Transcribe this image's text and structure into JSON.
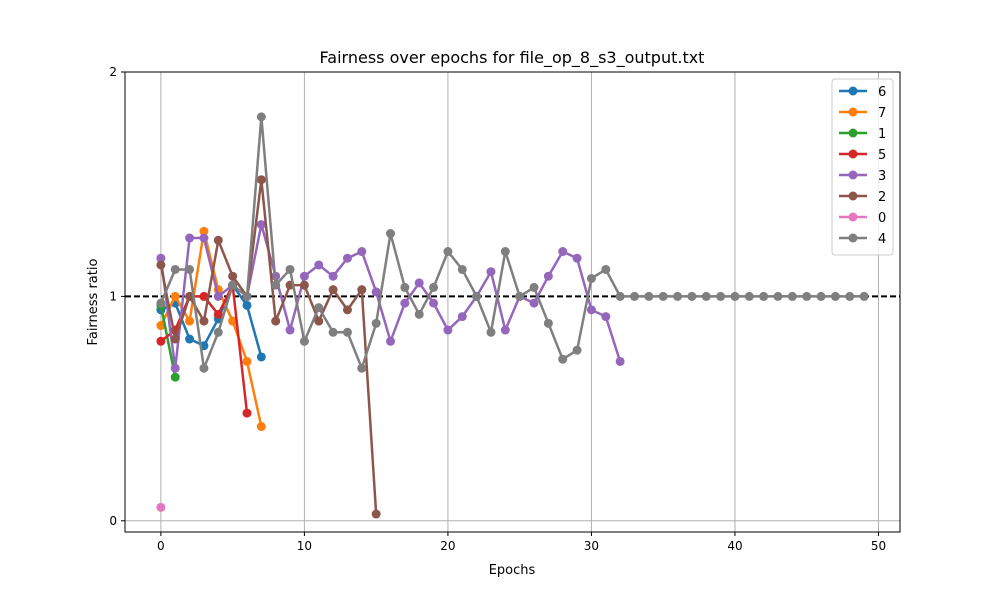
{
  "chart_data": {
    "type": "line",
    "title": "Fairness over epochs for file_op_8_s3_output.txt",
    "xlabel": "Epochs",
    "ylabel": "Fairness ratio",
    "xlim": [
      -2.5,
      51.5
    ],
    "ylim": [
      -0.05,
      2.0
    ],
    "xticks": [
      0,
      10,
      20,
      30,
      40,
      50
    ],
    "yticks": [
      0,
      1,
      2
    ],
    "grid": "vertical",
    "reference_line": {
      "y": 1.0,
      "style": "dashed",
      "color": "#000000"
    },
    "legend_position": "top-right",
    "series": [
      {
        "name": "6",
        "color": "#1f77b4",
        "x": [
          0,
          1,
          2,
          3,
          4,
          5,
          6,
          7
        ],
        "y": [
          0.94,
          0.97,
          0.81,
          0.78,
          0.9,
          1.05,
          0.96,
          0.73
        ]
      },
      {
        "name": "7",
        "color": "#ff7f0e",
        "x": [
          0,
          1,
          2,
          3,
          4,
          5,
          6,
          7
        ],
        "y": [
          0.87,
          1.0,
          0.89,
          1.29,
          1.03,
          0.89,
          0.71,
          0.42
        ]
      },
      {
        "name": "1",
        "color": "#2ca02c",
        "x": [
          0,
          1
        ],
        "y": [
          0.96,
          0.64
        ]
      },
      {
        "name": "5",
        "color": "#d62728",
        "x": [
          0,
          1,
          2,
          3,
          4,
          5,
          6
        ],
        "y": [
          0.8,
          0.85,
          1.0,
          1.0,
          0.92,
          1.05,
          0.48
        ]
      },
      {
        "name": "3",
        "color": "#9467bd",
        "x": [
          0,
          1,
          2,
          3,
          4,
          5,
          6,
          7,
          8,
          9,
          10,
          11,
          12,
          13,
          14,
          15,
          16,
          17,
          18,
          19,
          20,
          21,
          22,
          23,
          24,
          25,
          26,
          27,
          28,
          29,
          30,
          31,
          32
        ],
        "y": [
          1.17,
          0.68,
          1.26,
          1.26,
          1.0,
          1.05,
          1.0,
          1.32,
          1.09,
          0.85,
          1.09,
          1.14,
          1.09,
          1.17,
          1.2,
          1.02,
          0.8,
          0.97,
          1.06,
          0.97,
          0.85,
          0.91,
          1.0,
          1.11,
          0.85,
          1.0,
          0.97,
          1.09,
          1.2,
          1.17,
          0.94,
          0.91,
          0.71
        ]
      },
      {
        "name": "2",
        "color": "#8c564b",
        "x": [
          0,
          1,
          2,
          3,
          4,
          5,
          6,
          7,
          8,
          9,
          10,
          11,
          12,
          13,
          14,
          15
        ],
        "y": [
          1.14,
          0.81,
          1.0,
          0.89,
          1.25,
          1.09,
          1.0,
          1.52,
          0.89,
          1.05,
          1.05,
          0.89,
          1.03,
          0.94,
          1.03,
          0.03
        ]
      },
      {
        "name": "0",
        "color": "#e377c2",
        "x": [
          0
        ],
        "y": [
          0.06
        ]
      },
      {
        "name": "4",
        "color": "#7f7f7f",
        "x": [
          0,
          1,
          2,
          3,
          4,
          5,
          6,
          7,
          8,
          9,
          10,
          11,
          12,
          13,
          14,
          15,
          16,
          17,
          18,
          19,
          20,
          21,
          22,
          23,
          24,
          25,
          26,
          27,
          28,
          29,
          30,
          31,
          32,
          33,
          34,
          35,
          36,
          37,
          38,
          39,
          40,
          41,
          42,
          43,
          44,
          45,
          46,
          47,
          48,
          49
        ],
        "y": [
          0.97,
          1.12,
          1.12,
          0.68,
          0.84,
          1.05,
          1.0,
          1.8,
          1.05,
          1.12,
          0.8,
          0.95,
          0.84,
          0.84,
          0.68,
          0.88,
          1.28,
          1.04,
          0.92,
          1.04,
          1.2,
          1.12,
          1.0,
          0.84,
          1.2,
          1.0,
          1.04,
          0.88,
          0.72,
          0.76,
          1.08,
          1.12,
          1.0,
          1.0,
          1.0,
          1.0,
          1.0,
          1.0,
          1.0,
          1.0,
          1.0,
          1.0,
          1.0,
          1.0,
          1.0,
          1.0,
          1.0,
          1.0,
          1.0,
          1.0
        ]
      }
    ]
  }
}
